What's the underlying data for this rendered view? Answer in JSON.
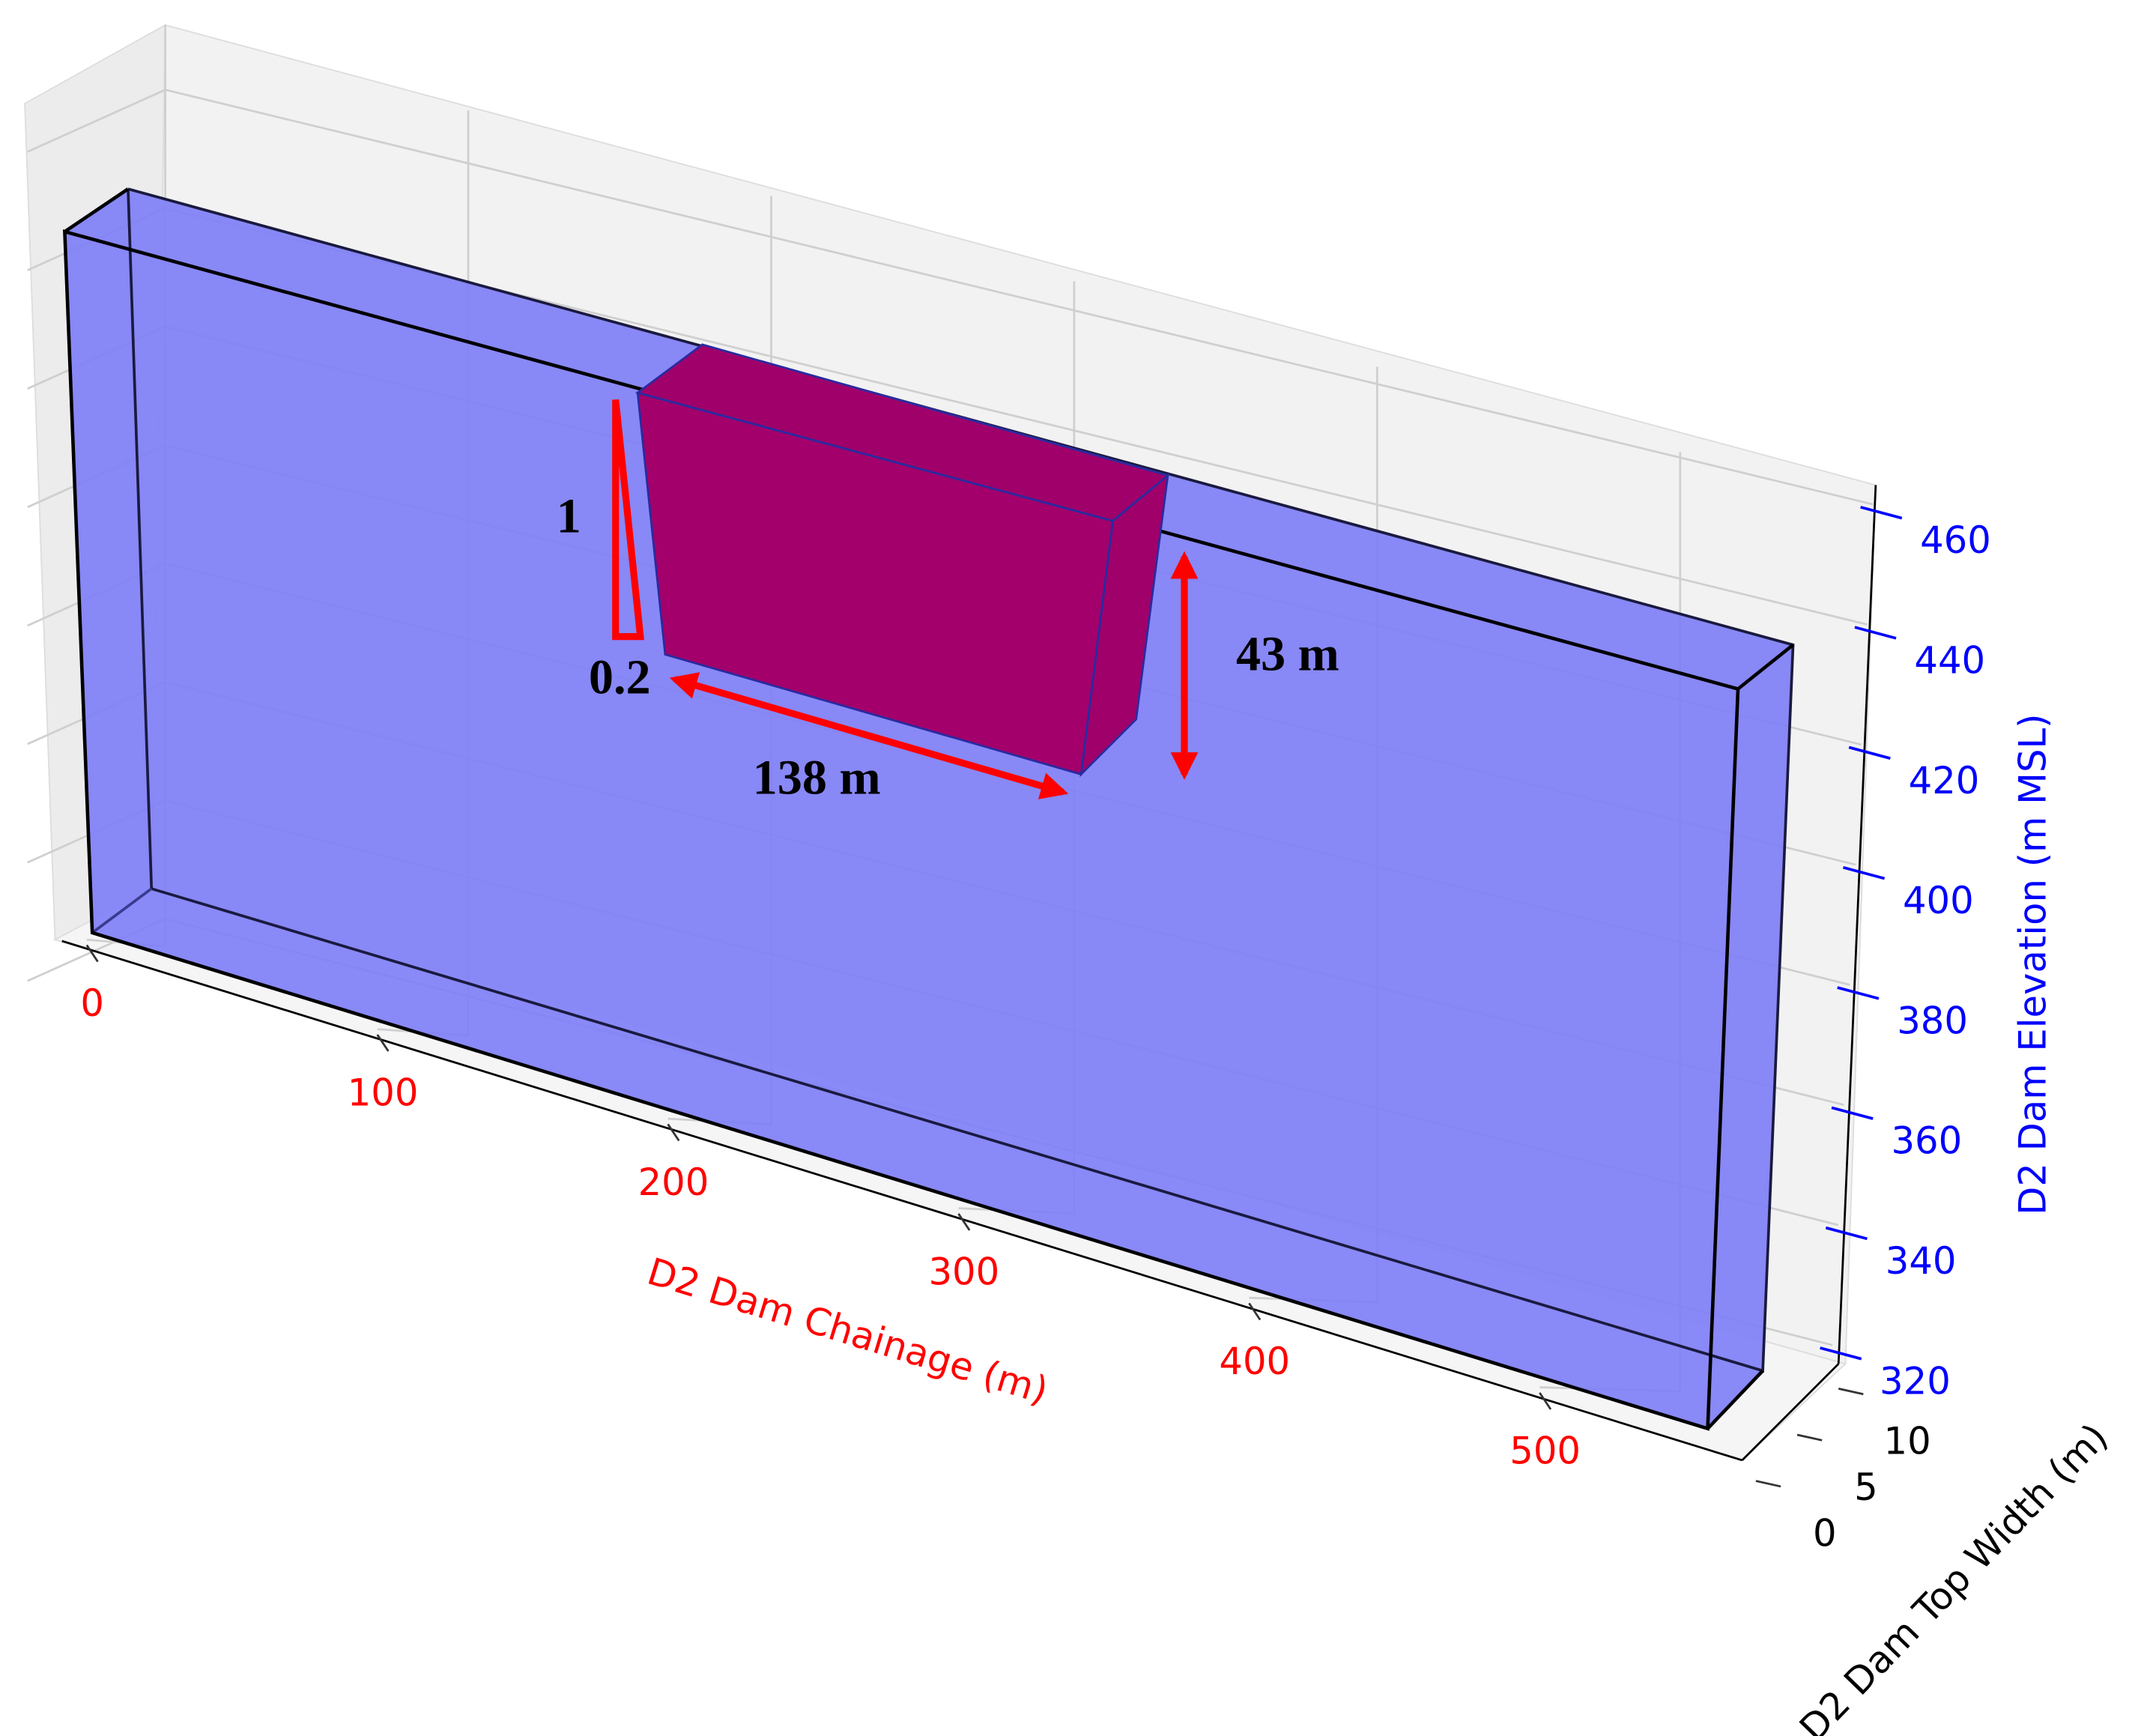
{
  "chart_data": {
    "type": "3d-box",
    "xlabel": "D2 Dam Chainage (m)",
    "xticks": [
      0,
      100,
      200,
      300,
      400,
      500
    ],
    "xcolor": "#ff0000",
    "ylabel": "D2 Dam Top Width (m)",
    "yticks": [
      0,
      5,
      10
    ],
    "ycolor": "#000000",
    "zlabel": "D2 Dam Elevation (m MSL)",
    "zticks": [
      320,
      340,
      360,
      380,
      400,
      420,
      440,
      460
    ],
    "zcolor": "#0000ff",
    "grid": true,
    "annotations": [
      "1",
      "0.2",
      "138 m",
      "43 m"
    ]
  }
}
